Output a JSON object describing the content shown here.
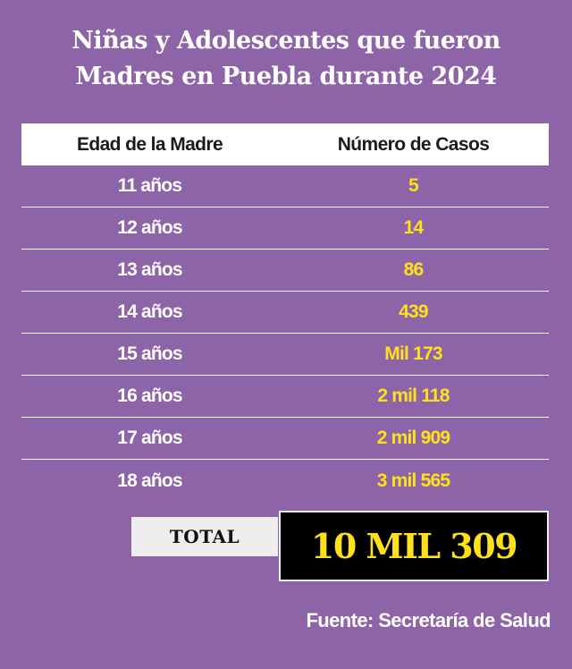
{
  "title": {
    "line1": "Niñas y Adolescentes que fueron",
    "line2": "Madres en Puebla durante 2024"
  },
  "table": {
    "headers": {
      "age": "Edad de la Madre",
      "cases": "Número de Casos"
    },
    "rows": [
      {
        "age": "11 años",
        "cases": "5"
      },
      {
        "age": "12 años",
        "cases": "14"
      },
      {
        "age": "13 años",
        "cases": "86"
      },
      {
        "age": "14 años",
        "cases": "439"
      },
      {
        "age": "15 años",
        "cases": "Mil 173"
      },
      {
        "age": "16 años",
        "cases": "2 mil 118"
      },
      {
        "age": "17 años",
        "cases": "2 mil 909"
      },
      {
        "age": "18 años",
        "cases": "3 mil 565"
      }
    ]
  },
  "total": {
    "label": "TOTAL",
    "value": "10 MIL 309"
  },
  "source": "Fuente: Secretaría de Salud",
  "colors": {
    "background": "#8e64a8",
    "highlight": "#ffe11a",
    "header_bg": "#ffffff",
    "total_value_bg": "#000000"
  }
}
